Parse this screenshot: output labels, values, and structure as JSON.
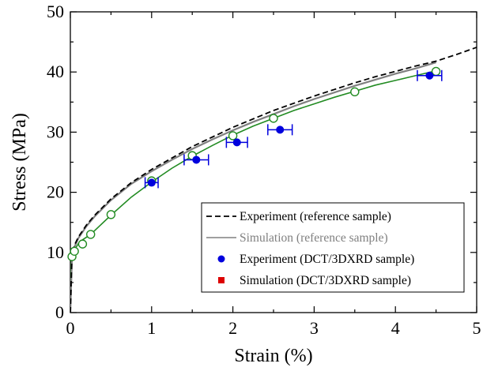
{
  "chart_data": {
    "type": "line",
    "xlabel": "Strain (%)",
    "ylabel": "Stress (MPa)",
    "xlim": [
      0,
      5
    ],
    "ylim": [
      0,
      50
    ],
    "xticks": [
      0,
      1,
      2,
      3,
      4,
      5
    ],
    "yticks": [
      0,
      10,
      20,
      30,
      40,
      50
    ],
    "grid": false,
    "legend_position": "bottom-right",
    "colors": {
      "experiment_reference": "#000000",
      "simulation_reference": "#808080",
      "experiment_dct": "#0000dd",
      "simulation_dct": "#dd0000",
      "simulation_dct_curve": "#228b22"
    },
    "series": [
      {
        "name": "Experiment (reference sample)",
        "style": "dashed",
        "x": [
          0,
          0.02,
          0.05,
          0.1,
          0.2,
          0.3,
          0.5,
          0.75,
          1.0,
          1.25,
          1.5,
          1.75,
          2.0,
          2.25,
          2.5,
          2.75,
          3.0,
          3.25,
          3.5,
          3.75,
          4.0,
          4.25,
          4.5,
          4.75,
          5.0
        ],
        "y": [
          0,
          9.5,
          11.2,
          12.6,
          14.6,
          16.2,
          18.9,
          21.6,
          23.8,
          25.7,
          27.6,
          29.2,
          30.8,
          32.2,
          33.6,
          34.8,
          36.0,
          37.1,
          38.2,
          39.2,
          40.1,
          41.0,
          41.8,
          42.9,
          44.1
        ]
      },
      {
        "name": "Simulation (reference sample)",
        "style": "solid",
        "x": [
          0,
          0.02,
          0.05,
          0.1,
          0.2,
          0.3,
          0.5,
          0.75,
          1.0,
          1.25,
          1.5,
          1.75,
          2.0,
          2.25,
          2.5,
          2.75,
          3.0,
          3.25,
          3.5,
          3.75,
          4.0,
          4.25,
          4.5
        ],
        "y": [
          0,
          9.3,
          10.9,
          12.4,
          14.4,
          16.0,
          18.7,
          21.4,
          23.5,
          25.4,
          27.2,
          28.8,
          30.3,
          31.7,
          33.0,
          34.3,
          35.5,
          36.6,
          37.7,
          38.7,
          39.7,
          40.6,
          41.6
        ]
      },
      {
        "name": "Experiment (DCT/3DXRD sample)",
        "style": "markers",
        "x": [
          1.0,
          1.55,
          2.05,
          2.58,
          4.42
        ],
        "y": [
          21.6,
          25.4,
          28.3,
          30.4,
          39.4
        ],
        "x_err": [
          0.08,
          0.15,
          0.13,
          0.15,
          0.15
        ]
      },
      {
        "name": "Simulation (DCT/3DXRD sample)",
        "style": "solid-with-open-markers",
        "x": [
          0,
          0.01,
          0.02,
          0.05,
          0.1,
          0.15,
          0.25,
          0.5,
          0.75,
          1.0,
          1.25,
          1.5,
          1.75,
          2.0,
          2.25,
          2.5,
          2.75,
          3.0,
          3.25,
          3.5,
          3.75,
          4.0,
          4.25,
          4.5
        ],
        "y": [
          0,
          8.2,
          9.3,
          10.4,
          11.5,
          12.1,
          13.0,
          16.2,
          19.2,
          21.7,
          24.0,
          26.0,
          27.8,
          29.5,
          31.0,
          32.3,
          33.6,
          34.7,
          35.8,
          36.8,
          37.8,
          38.6,
          39.4,
          40.2
        ],
        "marker_x": [
          0.02,
          0.05,
          0.15,
          0.25,
          0.5,
          1.0,
          1.5,
          2.0,
          2.5,
          3.5,
          4.5
        ],
        "marker_y": [
          9.3,
          10.2,
          11.4,
          13.0,
          16.3,
          21.9,
          26.1,
          29.4,
          32.3,
          36.7,
          40.1
        ]
      }
    ]
  }
}
